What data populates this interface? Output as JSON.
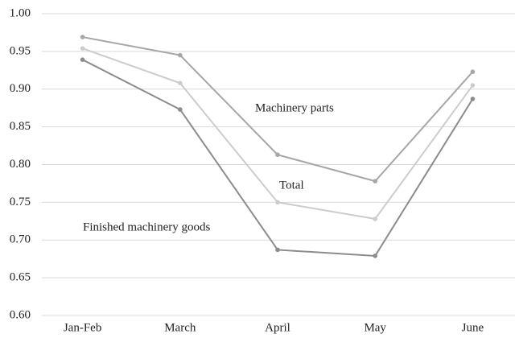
{
  "chart_data": {
    "type": "line",
    "categories": [
      "Jan-Feb",
      "March",
      "April",
      "May",
      "June"
    ],
    "series": [
      {
        "name": "Machinery parts",
        "color": "#a6a6a6",
        "values": [
          0.969,
          0.945,
          0.813,
          0.778,
          0.923
        ]
      },
      {
        "name": "Total",
        "color": "#cccccc",
        "values": [
          0.954,
          0.908,
          0.75,
          0.728,
          0.905
        ]
      },
      {
        "name": "Finished machinery goods",
        "color": "#8c8c8c",
        "values": [
          0.939,
          0.873,
          0.687,
          0.679,
          0.887
        ]
      }
    ],
    "ylim": [
      0.6,
      1.0
    ],
    "yticks": [
      {
        "value": 0.6,
        "label": "0.60"
      },
      {
        "value": 0.65,
        "label": "0.65"
      },
      {
        "value": 0.7,
        "label": "0.70"
      },
      {
        "value": 0.75,
        "label": "0.75"
      },
      {
        "value": 0.8,
        "label": "0.80"
      },
      {
        "value": 0.85,
        "label": "0.85"
      },
      {
        "value": 0.9,
        "label": "0.90"
      },
      {
        "value": 0.95,
        "label": "0.95"
      },
      {
        "value": 1.0,
        "label": "1.00"
      }
    ],
    "grid": true
  }
}
